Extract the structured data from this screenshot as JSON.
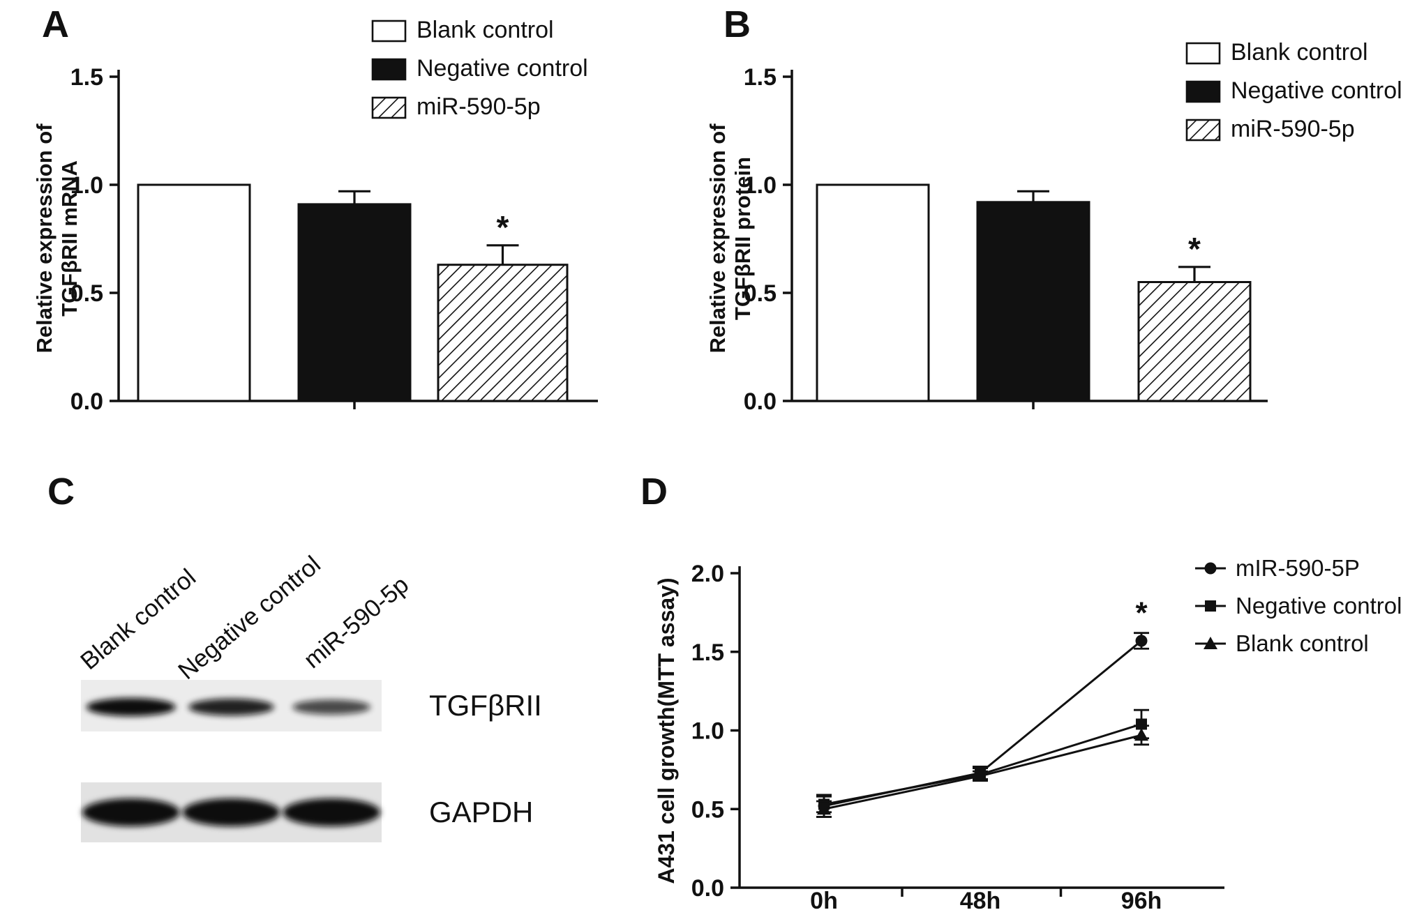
{
  "figure": {
    "panel_letters": [
      "A",
      "B",
      "C",
      "D"
    ]
  },
  "colors": {
    "ink": "#111111",
    "background": "#ffffff",
    "blot_strip_top": "#ececec",
    "blot_strip_bottom": "#e2e2e2"
  },
  "chart_data": [
    {
      "id": "panel_a",
      "type": "bar",
      "panel": "A",
      "ylabel": "Relative expression of TGFβRII mRNA",
      "ylabel_lines": [
        "Relative expression of",
        "TGFβRII mRNA"
      ],
      "categories": [
        "Blank control",
        "Negative control",
        "miR-590-5p"
      ],
      "values": [
        1.0,
        0.91,
        0.63
      ],
      "errors": [
        0,
        0.06,
        0.09
      ],
      "significance": [
        "",
        "",
        "*"
      ],
      "bar_styles": [
        "white",
        "black",
        "hatched"
      ],
      "legend": [
        "Blank control",
        "Negative control",
        "miR-590-5p"
      ],
      "legend_position": "top-right",
      "ylim": [
        0,
        1.5
      ],
      "yticks": [
        0.0,
        0.5,
        1.0,
        1.5
      ],
      "grid": false
    },
    {
      "id": "panel_b",
      "type": "bar",
      "panel": "B",
      "ylabel": "Relative expression of TGFβRII protein",
      "ylabel_lines": [
        "Relative expression of",
        "TGFβRII protein"
      ],
      "categories": [
        "Blank control",
        "Negative control",
        "miR-590-5p"
      ],
      "values": [
        1.0,
        0.92,
        0.55
      ],
      "errors": [
        0,
        0.05,
        0.07
      ],
      "significance": [
        "",
        "",
        "*"
      ],
      "bar_styles": [
        "white",
        "black",
        "hatched"
      ],
      "legend": [
        "Blank control",
        "Negative control",
        "miR-590-5p"
      ],
      "legend_position": "top-right",
      "ylim": [
        0,
        1.5
      ],
      "yticks": [
        0.0,
        0.5,
        1.0,
        1.5
      ],
      "grid": false
    },
    {
      "id": "panel_c",
      "type": "western_blot",
      "panel": "C",
      "lane_labels": [
        "Blank control",
        "Negative control",
        "miR-590-5p"
      ],
      "rows": [
        {
          "label": "TGFβRII",
          "band_relative_intensity": [
            1.0,
            0.85,
            0.55
          ]
        },
        {
          "label": "GAPDH",
          "band_relative_intensity": [
            1.0,
            1.0,
            1.0
          ]
        }
      ]
    },
    {
      "id": "panel_d",
      "type": "line",
      "panel": "D",
      "ylabel": "A431 cell growth(MTT assay)",
      "ylabel_lines": [
        "A431 cell growth(MTT assay)"
      ],
      "categories": [
        "0h",
        "48h",
        "96h"
      ],
      "series": [
        {
          "name": "mIR-590-5P",
          "marker": "circle",
          "values": [
            0.52,
            0.73,
            1.57
          ],
          "errors": [
            0.07,
            0.04,
            0.05
          ],
          "significance": [
            "",
            "",
            "*"
          ]
        },
        {
          "name": "Negative control",
          "marker": "square",
          "values": [
            0.53,
            0.72,
            1.04
          ],
          "errors": [
            0.05,
            0.04,
            0.09
          ],
          "significance": [
            "",
            "",
            ""
          ]
        },
        {
          "name": "Blank control",
          "marker": "triangle",
          "values": [
            0.5,
            0.71,
            0.97
          ],
          "errors": [
            0.05,
            0.03,
            0.06
          ],
          "significance": [
            "",
            "",
            ""
          ]
        }
      ],
      "legend_position": "top-right",
      "ylim": [
        0,
        2.0
      ],
      "yticks": [
        0.0,
        0.5,
        1.0,
        1.5,
        2.0
      ],
      "grid": false
    }
  ]
}
